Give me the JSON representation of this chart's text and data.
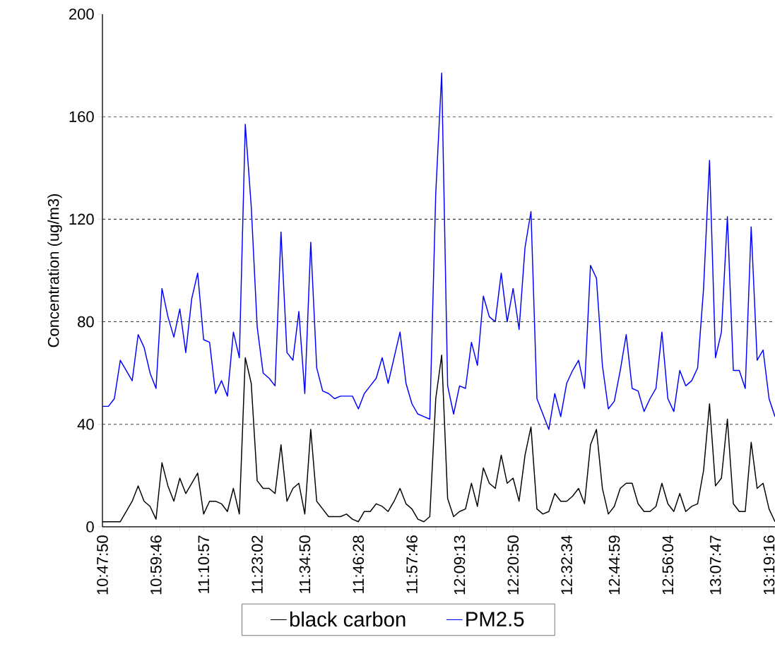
{
  "chart_data": {
    "type": "line",
    "ylabel": "Concentration (ug/m3)",
    "categories": [
      "10:47:50",
      null,
      null,
      null,
      null,
      null,
      null,
      null,
      null,
      "10:59:46",
      null,
      null,
      null,
      null,
      null,
      null,
      null,
      "11:10:57",
      null,
      null,
      null,
      null,
      null,
      null,
      null,
      null,
      "11:23:02",
      null,
      null,
      null,
      null,
      null,
      null,
      null,
      "11:34:50",
      null,
      null,
      null,
      null,
      null,
      null,
      null,
      null,
      "11:46:28",
      null,
      null,
      null,
      null,
      null,
      null,
      null,
      null,
      "11:57:46",
      null,
      null,
      null,
      null,
      null,
      null,
      null,
      "12:09:13",
      null,
      null,
      null,
      null,
      null,
      null,
      null,
      null,
      "12:20:50",
      null,
      null,
      null,
      null,
      null,
      null,
      null,
      null,
      "12:32:34",
      null,
      null,
      null,
      null,
      null,
      null,
      null,
      "12:44:59",
      null,
      null,
      null,
      null,
      null,
      null,
      null,
      null,
      "12:56:04",
      null,
      null,
      null,
      null,
      null,
      null,
      null,
      "13:07:47",
      null,
      null,
      null,
      null,
      null,
      null,
      null,
      null,
      "13:19:16",
      null
    ],
    "series": [
      {
        "name": "black carbon",
        "color": "#000000",
        "values": [
          2,
          2,
          2,
          2,
          6,
          10,
          16,
          10,
          8,
          3,
          25,
          16,
          10,
          19,
          13,
          17,
          21,
          5,
          10,
          10,
          9,
          6,
          15,
          5,
          66,
          56,
          18,
          15,
          15,
          13,
          32,
          10,
          15,
          17,
          5,
          38,
          10,
          7,
          4,
          4,
          4,
          5,
          3,
          2,
          6,
          6,
          9,
          8,
          6,
          10,
          15,
          9,
          7,
          3,
          2,
          4,
          50,
          67,
          11,
          4,
          6,
          7,
          17,
          8,
          23,
          17,
          15,
          28,
          17,
          19,
          10,
          28,
          39,
          7,
          5,
          6,
          13,
          10,
          10,
          12,
          15,
          9,
          32,
          38,
          15,
          5,
          8,
          15,
          17,
          17,
          9,
          6,
          6,
          8,
          17,
          9,
          6,
          13,
          6,
          8,
          9,
          22,
          48,
          16,
          19,
          42,
          9,
          6,
          6,
          33,
          15,
          17,
          7,
          2
        ]
      },
      {
        "name": "PM2.5",
        "color": "#0000ff",
        "values": [
          47,
          47,
          50,
          65,
          61,
          57,
          75,
          70,
          60,
          54,
          93,
          82,
          74,
          85,
          68,
          89,
          99,
          73,
          72,
          52,
          57,
          51,
          76,
          66,
          157,
          125,
          78,
          60,
          58,
          55,
          115,
          68,
          65,
          84,
          52,
          111,
          62,
          53,
          52,
          50,
          51,
          51,
          51,
          46,
          52,
          55,
          58,
          66,
          56,
          66,
          76,
          56,
          48,
          44,
          43,
          42,
          130,
          177,
          55,
          44,
          55,
          54,
          72,
          63,
          90,
          82,
          80,
          99,
          80,
          93,
          77,
          109,
          123,
          50,
          44,
          38,
          52,
          43,
          56,
          61,
          65,
          54,
          102,
          97,
          63,
          46,
          49,
          61,
          75,
          54,
          53,
          45,
          50,
          54,
          76,
          50,
          45,
          61,
          55,
          57,
          62,
          93,
          143,
          66,
          76,
          121,
          61,
          61,
          54,
          117,
          65,
          69,
          50,
          43
        ]
      }
    ],
    "ylim": [
      0,
      200
    ],
    "yticks": [
      0,
      40,
      80,
      120,
      160,
      200
    ],
    "grid": "y",
    "legend": "bottom",
    "line_style": "solid"
  }
}
